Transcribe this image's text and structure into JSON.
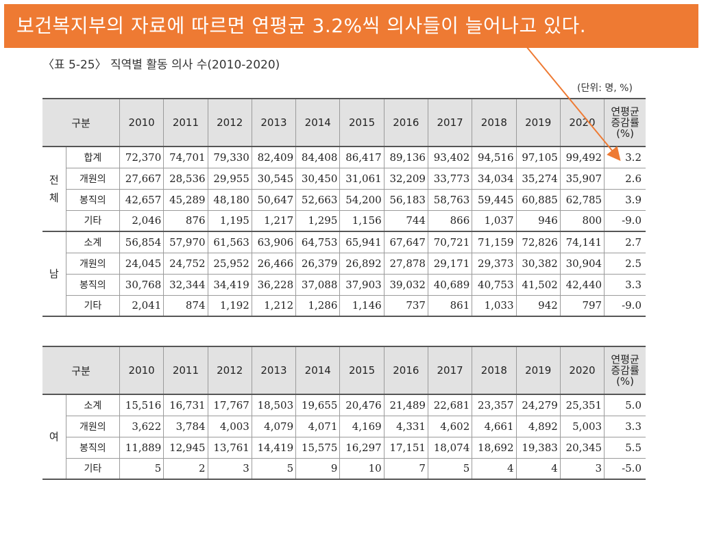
{
  "banner": "보건복지부의 자료에 따르면 연평균 3.2%씩 의사들이 늘어나고 있다.",
  "caption": "〈표 5-25〉 직역별 활동 의사 수(2010-2020)",
  "unit": "(단위: 명, %)",
  "colors": {
    "banner": "#ee7a33",
    "header_bg": "#e2e2e2"
  },
  "header": {
    "category": "구분",
    "years": [
      "2010",
      "2011",
      "2012",
      "2013",
      "2014",
      "2015",
      "2016",
      "2017",
      "2018",
      "2019",
      "2020"
    ],
    "growth_line1": "연평균",
    "growth_line2": "증감률",
    "growth_line3": "(%)"
  },
  "table1": [
    {
      "group": "전\n체",
      "rows": [
        {
          "label": "합계",
          "values": [
            "72,370",
            "74,701",
            "79,330",
            "82,409",
            "84,408",
            "86,417",
            "89,136",
            "93,402",
            "94,516",
            "97,105",
            "99,492"
          ],
          "growth": "3.2"
        },
        {
          "label": "개원의",
          "values": [
            "27,667",
            "28,536",
            "29,955",
            "30,545",
            "30,450",
            "31,061",
            "32,209",
            "33,773",
            "34,034",
            "35,274",
            "35,907"
          ],
          "growth": "2.6"
        },
        {
          "label": "봉직의",
          "values": [
            "42,657",
            "45,289",
            "48,180",
            "50,647",
            "52,663",
            "54,200",
            "56,183",
            "58,763",
            "59,445",
            "60,885",
            "62,785"
          ],
          "growth": "3.9"
        },
        {
          "label": "기타",
          "values": [
            "2,046",
            "876",
            "1,195",
            "1,217",
            "1,295",
            "1,156",
            "744",
            "866",
            "1,037",
            "946",
            "800"
          ],
          "growth": "-9.0"
        }
      ]
    },
    {
      "group": "남",
      "rows": [
        {
          "label": "소계",
          "values": [
            "56,854",
            "57,970",
            "61,563",
            "63,906",
            "64,753",
            "65,941",
            "67,647",
            "70,721",
            "71,159",
            "72,826",
            "74,141"
          ],
          "growth": "2.7"
        },
        {
          "label": "개원의",
          "values": [
            "24,045",
            "24,752",
            "25,952",
            "26,466",
            "26,379",
            "26,892",
            "27,878",
            "29,171",
            "29,373",
            "30,382",
            "30,904"
          ],
          "growth": "2.5"
        },
        {
          "label": "봉직의",
          "values": [
            "30,768",
            "32,344",
            "34,419",
            "36,228",
            "37,088",
            "37,903",
            "39,032",
            "40,689",
            "40,753",
            "41,502",
            "42,440"
          ],
          "growth": "3.3"
        },
        {
          "label": "기타",
          "values": [
            "2,041",
            "874",
            "1,192",
            "1,212",
            "1,286",
            "1,146",
            "737",
            "861",
            "1,033",
            "942",
            "797"
          ],
          "growth": "-9.0"
        }
      ]
    }
  ],
  "table2": [
    {
      "group": "여",
      "rows": [
        {
          "label": "소계",
          "values": [
            "15,516",
            "16,731",
            "17,767",
            "18,503",
            "19,655",
            "20,476",
            "21,489",
            "22,681",
            "23,357",
            "24,279",
            "25,351"
          ],
          "growth": "5.0"
        },
        {
          "label": "개원의",
          "values": [
            "3,622",
            "3,784",
            "4,003",
            "4,079",
            "4,071",
            "4,169",
            "4,331",
            "4,602",
            "4,661",
            "4,892",
            "5,003"
          ],
          "growth": "3.3"
        },
        {
          "label": "봉직의",
          "values": [
            "11,889",
            "12,945",
            "13,761",
            "14,419",
            "15,575",
            "16,297",
            "17,151",
            "18,074",
            "18,692",
            "19,383",
            "20,345"
          ],
          "growth": "5.5"
        },
        {
          "label": "기타",
          "values": [
            "5",
            "2",
            "3",
            "5",
            "9",
            "10",
            "7",
            "5",
            "4",
            "4",
            "3"
          ],
          "growth": "-5.0"
        }
      ]
    }
  ]
}
